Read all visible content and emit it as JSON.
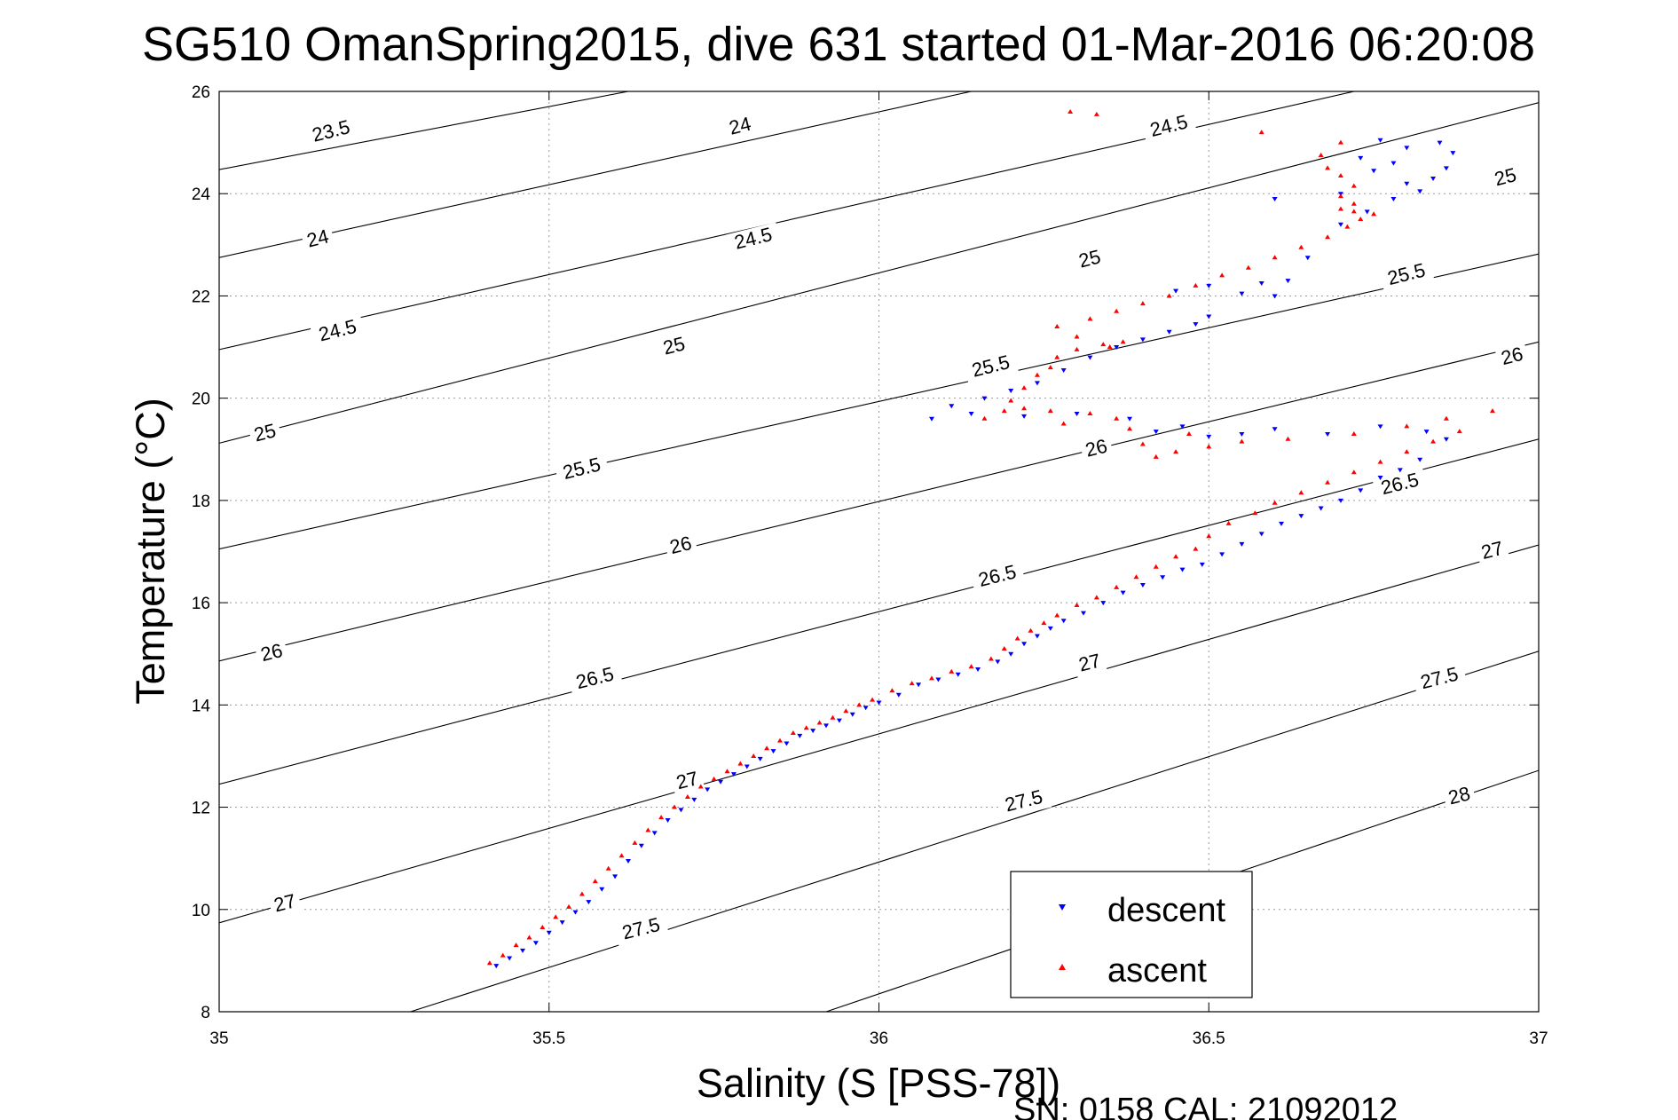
{
  "chart_data": {
    "type": "scatter",
    "title": "SG510 OmanSpring2015, dive 631 started 01-Mar-2016 06:20:08",
    "xlabel": "Salinity (S [PSS-78])",
    "ylabel": "Temperature (°C)",
    "xlim": [
      35,
      37
    ],
    "ylim": [
      8,
      26
    ],
    "xticks": [
      35,
      35.5,
      36,
      36.5,
      37
    ],
    "xtick_labels": [
      "35",
      "35.5",
      "36",
      "36.5",
      "37"
    ],
    "yticks": [
      8,
      10,
      12,
      14,
      16,
      18,
      20,
      22,
      24,
      26
    ],
    "ytick_labels": [
      "8",
      "10",
      "12",
      "14",
      "16",
      "18",
      "20",
      "22",
      "24",
      "26"
    ],
    "grid": true,
    "legend_position": "bottom-right",
    "footer": "SN: 0158  CAL: 21092012",
    "colors": {
      "descent": "#0000ff",
      "ascent": "#ff0000",
      "contours": "#000000"
    },
    "contours": [
      {
        "label": "23.5",
        "points": [
          [
            35.0,
            24.47
          ],
          [
            35.62,
            26.0
          ]
        ]
      },
      {
        "label": "24",
        "points": [
          [
            35.0,
            22.75
          ],
          [
            36.14,
            26.0
          ]
        ]
      },
      {
        "label": "24.5",
        "points": [
          [
            35.0,
            20.95
          ],
          [
            36.72,
            26.0
          ]
        ]
      },
      {
        "label": "25",
        "points": [
          [
            35.0,
            19.12
          ],
          [
            37.0,
            25.78
          ]
        ]
      },
      {
        "label": "25.5",
        "points": [
          [
            35.0,
            17.05
          ],
          [
            37.0,
            22.82
          ]
        ]
      },
      {
        "label": "26",
        "points": [
          [
            35.0,
            14.86
          ],
          [
            37.0,
            21.1
          ]
        ]
      },
      {
        "label": "26.5",
        "points": [
          [
            35.0,
            12.45
          ],
          [
            37.0,
            19.2
          ]
        ]
      },
      {
        "label": "27",
        "points": [
          [
            35.0,
            9.74
          ],
          [
            37.0,
            17.13
          ]
        ]
      },
      {
        "label": "27.5",
        "points": [
          [
            35.29,
            8.0
          ],
          [
            37.0,
            15.05
          ]
        ]
      },
      {
        "label": "28",
        "points": [
          [
            35.92,
            8.0
          ],
          [
            37.0,
            12.72
          ]
        ]
      }
    ],
    "contour_labels": [
      {
        "text": "23.5",
        "x": 35.17,
        "y": 25.2
      },
      {
        "text": "24",
        "x": 35.79,
        "y": 25.3
      },
      {
        "text": "24.5",
        "x": 36.44,
        "y": 25.3
      },
      {
        "text": "25",
        "x": 36.95,
        "y": 24.3
      },
      {
        "text": "24",
        "x": 35.15,
        "y": 23.1
      },
      {
        "text": "24.5",
        "x": 35.81,
        "y": 23.1
      },
      {
        "text": "25",
        "x": 36.32,
        "y": 22.7
      },
      {
        "text": "25.5",
        "x": 36.8,
        "y": 22.4
      },
      {
        "text": "24.5",
        "x": 35.18,
        "y": 21.3
      },
      {
        "text": "25",
        "x": 35.69,
        "y": 21.0
      },
      {
        "text": "25.5",
        "x": 36.17,
        "y": 20.6
      },
      {
        "text": "26",
        "x": 36.96,
        "y": 20.8
      },
      {
        "text": "25",
        "x": 35.07,
        "y": 19.3
      },
      {
        "text": "25.5",
        "x": 35.55,
        "y": 18.6
      },
      {
        "text": "26",
        "x": 36.33,
        "y": 19.0
      },
      {
        "text": "26.5",
        "x": 36.79,
        "y": 18.3
      },
      {
        "text": "26",
        "x": 35.7,
        "y": 17.1
      },
      {
        "text": "26.5",
        "x": 36.18,
        "y": 16.5
      },
      {
        "text": "27",
        "x": 36.93,
        "y": 17.0
      },
      {
        "text": "26",
        "x": 35.08,
        "y": 15.0
      },
      {
        "text": "26.5",
        "x": 35.57,
        "y": 14.5
      },
      {
        "text": "27",
        "x": 36.32,
        "y": 14.8
      },
      {
        "text": "27.5",
        "x": 36.85,
        "y": 14.5
      },
      {
        "text": "27",
        "x": 35.71,
        "y": 12.5
      },
      {
        "text": "27.5",
        "x": 36.22,
        "y": 12.1
      },
      {
        "text": "28",
        "x": 36.88,
        "y": 12.2
      },
      {
        "text": "27",
        "x": 35.1,
        "y": 10.1
      },
      {
        "text": "27.5",
        "x": 35.64,
        "y": 9.6
      }
    ],
    "series": [
      {
        "name": "descent",
        "marker": "triangle-down",
        "color": "#0000ff",
        "points": [
          [
            35.42,
            8.9
          ],
          [
            35.44,
            9.05
          ],
          [
            35.46,
            9.2
          ],
          [
            35.48,
            9.35
          ],
          [
            35.5,
            9.55
          ],
          [
            35.52,
            9.75
          ],
          [
            35.54,
            9.95
          ],
          [
            35.56,
            10.15
          ],
          [
            35.58,
            10.4
          ],
          [
            35.6,
            10.65
          ],
          [
            35.62,
            10.95
          ],
          [
            35.64,
            11.25
          ],
          [
            35.66,
            11.5
          ],
          [
            35.68,
            11.75
          ],
          [
            35.7,
            11.95
          ],
          [
            35.72,
            12.15
          ],
          [
            35.74,
            12.35
          ],
          [
            35.76,
            12.5
          ],
          [
            35.78,
            12.65
          ],
          [
            35.8,
            12.8
          ],
          [
            35.82,
            12.95
          ],
          [
            35.84,
            13.1
          ],
          [
            35.86,
            13.25
          ],
          [
            35.88,
            13.4
          ],
          [
            35.9,
            13.5
          ],
          [
            35.92,
            13.6
          ],
          [
            35.94,
            13.7
          ],
          [
            35.96,
            13.82
          ],
          [
            35.98,
            13.95
          ],
          [
            36.0,
            14.05
          ],
          [
            36.03,
            14.2
          ],
          [
            36.06,
            14.4
          ],
          [
            36.09,
            14.5
          ],
          [
            36.12,
            14.6
          ],
          [
            36.15,
            14.7
          ],
          [
            36.18,
            14.85
          ],
          [
            36.2,
            15.0
          ],
          [
            36.22,
            15.2
          ],
          [
            36.24,
            15.35
          ],
          [
            36.26,
            15.5
          ],
          [
            36.28,
            15.65
          ],
          [
            36.31,
            15.8
          ],
          [
            36.34,
            16.0
          ],
          [
            36.37,
            16.2
          ],
          [
            36.4,
            16.35
          ],
          [
            36.43,
            16.5
          ],
          [
            36.46,
            16.65
          ],
          [
            36.49,
            16.75
          ],
          [
            36.52,
            16.95
          ],
          [
            36.55,
            17.15
          ],
          [
            36.58,
            17.35
          ],
          [
            36.61,
            17.55
          ],
          [
            36.64,
            17.7
          ],
          [
            36.67,
            17.85
          ],
          [
            36.7,
            18.0
          ],
          [
            36.73,
            18.2
          ],
          [
            36.76,
            18.45
          ],
          [
            36.79,
            18.6
          ],
          [
            36.82,
            18.8
          ],
          [
            36.86,
            19.2
          ],
          [
            36.83,
            19.35
          ],
          [
            36.76,
            19.45
          ],
          [
            36.68,
            19.3
          ],
          [
            36.6,
            19.4
          ],
          [
            36.55,
            19.3
          ],
          [
            36.5,
            19.25
          ],
          [
            36.46,
            19.45
          ],
          [
            36.42,
            19.35
          ],
          [
            36.38,
            19.6
          ],
          [
            36.3,
            19.7
          ],
          [
            36.22,
            19.65
          ],
          [
            36.14,
            19.7
          ],
          [
            36.08,
            19.6
          ],
          [
            36.11,
            19.85
          ],
          [
            36.16,
            20.0
          ],
          [
            36.2,
            20.15
          ],
          [
            36.24,
            20.3
          ],
          [
            36.28,
            20.55
          ],
          [
            36.32,
            20.8
          ],
          [
            36.36,
            21.0
          ],
          [
            36.4,
            21.15
          ],
          [
            36.44,
            21.3
          ],
          [
            36.48,
            21.45
          ],
          [
            36.5,
            21.6
          ],
          [
            36.45,
            22.1
          ],
          [
            36.5,
            22.2
          ],
          [
            36.55,
            22.05
          ],
          [
            36.58,
            22.25
          ],
          [
            36.6,
            22.0
          ],
          [
            36.62,
            22.3
          ],
          [
            36.65,
            22.75
          ],
          [
            36.7,
            23.4
          ],
          [
            36.74,
            23.65
          ],
          [
            36.78,
            23.9
          ],
          [
            36.82,
            24.05
          ],
          [
            36.84,
            24.3
          ],
          [
            36.86,
            24.5
          ],
          [
            36.87,
            24.8
          ],
          [
            36.85,
            25.0
          ],
          [
            36.8,
            24.9
          ],
          [
            36.76,
            25.05
          ],
          [
            36.73,
            24.7
          ],
          [
            36.75,
            24.45
          ],
          [
            36.78,
            24.6
          ],
          [
            36.8,
            24.2
          ],
          [
            36.7,
            24.0
          ],
          [
            36.6,
            23.9
          ]
        ]
      },
      {
        "name": "ascent",
        "marker": "triangle-up",
        "color": "#ff0000",
        "points": [
          [
            35.41,
            8.95
          ],
          [
            35.43,
            9.1
          ],
          [
            35.45,
            9.3
          ],
          [
            35.47,
            9.45
          ],
          [
            35.49,
            9.65
          ],
          [
            35.51,
            9.85
          ],
          [
            35.53,
            10.05
          ],
          [
            35.55,
            10.3
          ],
          [
            35.57,
            10.55
          ],
          [
            35.59,
            10.8
          ],
          [
            35.61,
            11.05
          ],
          [
            35.63,
            11.3
          ],
          [
            35.65,
            11.55
          ],
          [
            35.67,
            11.8
          ],
          [
            35.69,
            12.0
          ],
          [
            35.71,
            12.2
          ],
          [
            35.73,
            12.4
          ],
          [
            35.75,
            12.55
          ],
          [
            35.77,
            12.7
          ],
          [
            35.79,
            12.85
          ],
          [
            35.81,
            13.0
          ],
          [
            35.83,
            13.15
          ],
          [
            35.85,
            13.3
          ],
          [
            35.87,
            13.45
          ],
          [
            35.89,
            13.55
          ],
          [
            35.91,
            13.65
          ],
          [
            35.93,
            13.75
          ],
          [
            35.95,
            13.88
          ],
          [
            35.97,
            14.0
          ],
          [
            35.99,
            14.1
          ],
          [
            36.02,
            14.28
          ],
          [
            36.05,
            14.42
          ],
          [
            36.08,
            14.52
          ],
          [
            36.11,
            14.65
          ],
          [
            36.14,
            14.75
          ],
          [
            36.17,
            14.9
          ],
          [
            36.19,
            15.1
          ],
          [
            36.21,
            15.3
          ],
          [
            36.23,
            15.45
          ],
          [
            36.25,
            15.6
          ],
          [
            36.27,
            15.75
          ],
          [
            36.3,
            15.95
          ],
          [
            36.33,
            16.1
          ],
          [
            36.36,
            16.3
          ],
          [
            36.39,
            16.5
          ],
          [
            36.42,
            16.7
          ],
          [
            36.45,
            16.9
          ],
          [
            36.48,
            17.05
          ],
          [
            36.5,
            17.3
          ],
          [
            36.53,
            17.55
          ],
          [
            36.57,
            17.75
          ],
          [
            36.6,
            17.95
          ],
          [
            36.64,
            18.15
          ],
          [
            36.68,
            18.35
          ],
          [
            36.72,
            18.55
          ],
          [
            36.76,
            18.75
          ],
          [
            36.8,
            18.95
          ],
          [
            36.84,
            19.15
          ],
          [
            36.88,
            19.35
          ],
          [
            36.93,
            19.75
          ],
          [
            36.86,
            19.6
          ],
          [
            36.8,
            19.45
          ],
          [
            36.72,
            19.3
          ],
          [
            36.62,
            19.2
          ],
          [
            36.55,
            19.15
          ],
          [
            36.5,
            19.05
          ],
          [
            36.47,
            19.3
          ],
          [
            36.45,
            18.95
          ],
          [
            36.42,
            18.85
          ],
          [
            36.4,
            19.1
          ],
          [
            36.38,
            19.4
          ],
          [
            36.36,
            19.6
          ],
          [
            36.32,
            19.7
          ],
          [
            36.28,
            19.5
          ],
          [
            36.26,
            19.75
          ],
          [
            36.22,
            19.8
          ],
          [
            36.19,
            19.75
          ],
          [
            36.16,
            19.6
          ],
          [
            36.2,
            19.95
          ],
          [
            36.22,
            20.2
          ],
          [
            36.24,
            20.45
          ],
          [
            36.26,
            20.6
          ],
          [
            36.27,
            20.8
          ],
          [
            36.3,
            20.95
          ],
          [
            36.34,
            21.05
          ],
          [
            36.37,
            21.1
          ],
          [
            36.35,
            21.0
          ],
          [
            36.3,
            21.2
          ],
          [
            36.27,
            21.4
          ],
          [
            36.32,
            21.55
          ],
          [
            36.36,
            21.7
          ],
          [
            36.4,
            21.85
          ],
          [
            36.44,
            22.0
          ],
          [
            36.48,
            22.2
          ],
          [
            36.52,
            22.4
          ],
          [
            36.56,
            22.55
          ],
          [
            36.6,
            22.75
          ],
          [
            36.64,
            22.95
          ],
          [
            36.68,
            23.15
          ],
          [
            36.71,
            23.35
          ],
          [
            36.73,
            23.5
          ],
          [
            36.75,
            23.6
          ],
          [
            36.72,
            23.65
          ],
          [
            36.7,
            23.7
          ],
          [
            36.72,
            23.8
          ],
          [
            36.7,
            23.95
          ],
          [
            36.72,
            24.15
          ],
          [
            36.7,
            24.35
          ],
          [
            36.68,
            24.5
          ],
          [
            36.67,
            24.75
          ],
          [
            36.7,
            25.0
          ],
          [
            36.58,
            25.2
          ],
          [
            36.33,
            25.55
          ],
          [
            36.29,
            25.6
          ]
        ]
      }
    ]
  }
}
